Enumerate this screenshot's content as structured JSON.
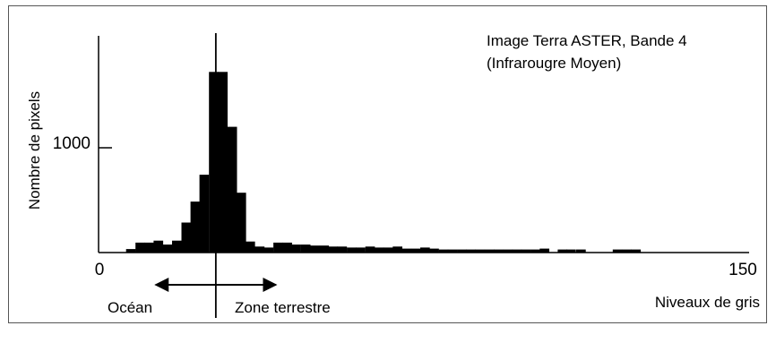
{
  "chart_data": {
    "type": "bar",
    "title_line1": "Image Terra ASTER, Bande 4",
    "title_line2": "(Infrarougre Moyen)",
    "xlabel": "Niveaux de gris",
    "ylabel": "Nombre de pixels",
    "x_tick_labels": [
      "0",
      "150"
    ],
    "y_tick_labels": [
      "1000"
    ],
    "xlim": [
      0,
      150
    ],
    "ylim": [
      0,
      2100
    ],
    "y_tick_values": [
      1000
    ],
    "bin_width": 2.14,
    "bins_x": [
      6.4,
      8.6,
      10.7,
      12.8,
      15.0,
      17.1,
      19.3,
      21.4,
      23.5,
      25.7,
      27.8,
      30.0,
      32.1,
      34.2,
      36.4,
      38.5,
      40.7,
      42.8,
      44.9,
      47.1,
      49.2,
      51.4,
      53.5,
      55.6,
      57.8,
      59.9,
      62.1,
      64.2,
      66.3,
      68.5,
      70.6,
      72.8,
      74.9,
      77.0,
      79.2,
      81.3,
      83.5,
      85.6,
      87.7,
      89.9,
      92.0,
      94.2,
      96.3,
      98.4,
      100.6,
      102.7,
      106.9,
      108.9,
      111.2,
      119.7,
      121.9,
      124.0
    ],
    "bins_y": [
      33,
      95,
      95,
      114,
      76,
      114,
      286,
      486,
      743,
      1724,
      1724,
      1200,
      571,
      105,
      57,
      48,
      95,
      95,
      76,
      76,
      67,
      67,
      57,
      57,
      48,
      48,
      57,
      48,
      48,
      57,
      38,
      38,
      48,
      38,
      29,
      29,
      29,
      29,
      29,
      29,
      29,
      29,
      29,
      29,
      29,
      38,
      29,
      29,
      29,
      29,
      29,
      29
    ],
    "threshold": {
      "x": 27.3,
      "left_label": "Océan",
      "right_label": "Zone terrestre"
    }
  },
  "colors": {
    "bars": "#000000",
    "axis": "#000000",
    "frame": "#555555"
  }
}
